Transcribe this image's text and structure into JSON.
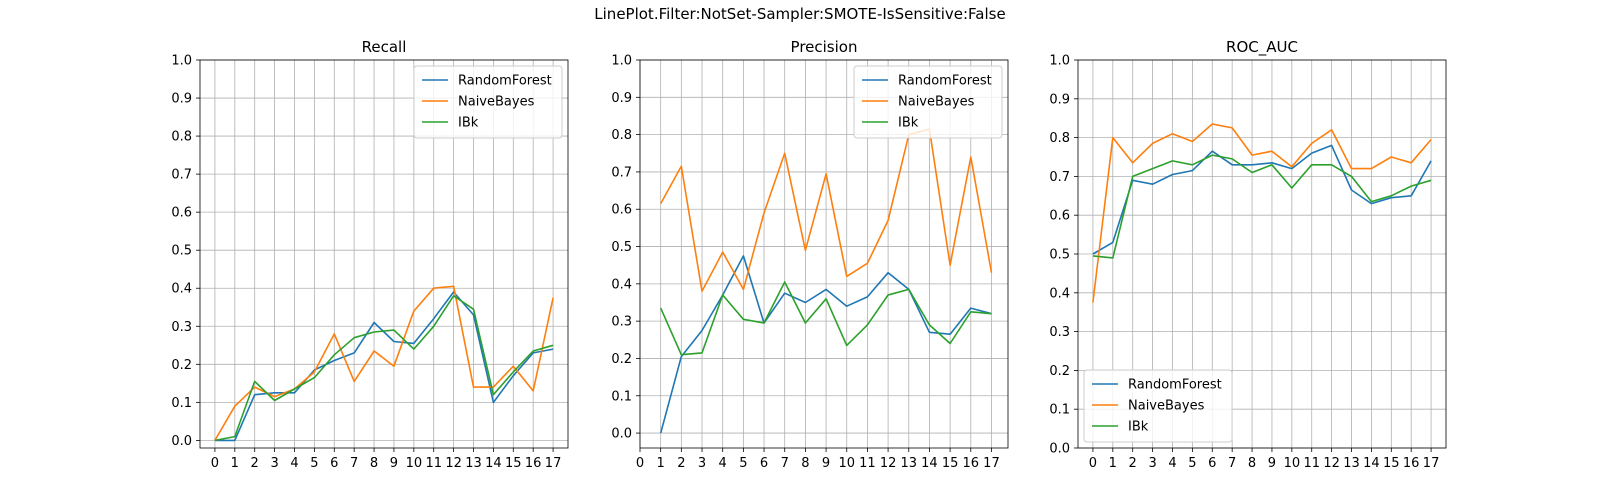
{
  "figure": {
    "suptitle": "LinePlot.Filter:NotSet-Sampler:SMOTE-IsSensitive:False"
  },
  "colors": {
    "RandomForest": "#1f77b4",
    "NaiveBayes": "#ff7f0e",
    "IBk": "#2ca02c",
    "grid": "#b0b0b0"
  },
  "chart_data": [
    {
      "type": "line",
      "title": "Recall",
      "xlabel": "",
      "ylabel": "",
      "x_ticks": [
        0,
        1,
        2,
        3,
        4,
        5,
        6,
        7,
        8,
        9,
        10,
        11,
        12,
        13,
        14,
        15,
        16,
        17
      ],
      "y_ticks": [
        "0.0",
        "0.1",
        "0.2",
        "0.3",
        "0.4",
        "0.5",
        "0.6",
        "0.7",
        "0.8",
        "0.9",
        "1.0"
      ],
      "xlim": [
        -0.75,
        17.75
      ],
      "ylim": [
        -0.02,
        1.0
      ],
      "grid": true,
      "legend_position": "upper right",
      "series": [
        {
          "name": "RandomForest",
          "x": [
            0,
            1,
            2,
            3,
            4,
            5,
            6,
            7,
            8,
            9,
            10,
            11,
            12,
            13,
            14,
            15,
            16,
            17
          ],
          "values": [
            0.0,
            0.0,
            0.12,
            0.125,
            0.125,
            0.185,
            0.21,
            0.23,
            0.31,
            0.26,
            0.255,
            0.32,
            0.39,
            0.33,
            0.1,
            0.17,
            0.23,
            0.24
          ]
        },
        {
          "name": "NaiveBayes",
          "x": [
            0,
            1,
            2,
            3,
            4,
            5,
            6,
            7,
            8,
            9,
            10,
            11,
            12,
            13,
            14,
            15,
            16,
            17
          ],
          "values": [
            0.0,
            0.09,
            0.14,
            0.115,
            0.135,
            0.18,
            0.28,
            0.155,
            0.235,
            0.195,
            0.34,
            0.4,
            0.405,
            0.14,
            0.14,
            0.195,
            0.13,
            0.375
          ]
        },
        {
          "name": "IBk",
          "x": [
            0,
            1,
            2,
            3,
            4,
            5,
            6,
            7,
            8,
            9,
            10,
            11,
            12,
            13,
            14,
            15,
            16,
            17
          ],
          "values": [
            0.0,
            0.01,
            0.155,
            0.105,
            0.135,
            0.165,
            0.225,
            0.27,
            0.285,
            0.29,
            0.24,
            0.3,
            0.38,
            0.345,
            0.12,
            0.18,
            0.235,
            0.25
          ]
        }
      ]
    },
    {
      "type": "line",
      "title": "Precision",
      "xlabel": "",
      "ylabel": "",
      "x_ticks": [
        0,
        1,
        2,
        3,
        4,
        5,
        6,
        7,
        8,
        9,
        10,
        11,
        12,
        13,
        14,
        15,
        16,
        17
      ],
      "y_ticks": [
        "0.0",
        "0.1",
        "0.2",
        "0.3",
        "0.4",
        "0.5",
        "0.6",
        "0.7",
        "0.8",
        "0.9",
        "1.0"
      ],
      "xlim": [
        0,
        17.8
      ],
      "ylim": [
        -0.04,
        1.0
      ],
      "grid": true,
      "legend_position": "upper right",
      "series": [
        {
          "name": "RandomForest",
          "x": [
            1,
            2,
            3,
            4,
            5,
            6,
            7,
            8,
            9,
            10,
            11,
            12,
            13,
            14,
            15,
            16,
            17
          ],
          "values": [
            0.0,
            0.205,
            0.275,
            0.37,
            0.475,
            0.295,
            0.375,
            0.35,
            0.385,
            0.34,
            0.365,
            0.43,
            0.385,
            0.27,
            0.265,
            0.335,
            0.32
          ]
        },
        {
          "name": "NaiveBayes",
          "x": [
            1,
            2,
            3,
            4,
            5,
            6,
            7,
            8,
            9,
            10,
            11,
            12,
            13,
            14,
            15,
            16,
            17
          ],
          "values": [
            0.615,
            0.715,
            0.38,
            0.485,
            0.385,
            0.59,
            0.75,
            0.49,
            0.695,
            0.42,
            0.455,
            0.57,
            0.8,
            0.815,
            0.45,
            0.74,
            0.43
          ]
        },
        {
          "name": "IBk",
          "x": [
            1,
            2,
            3,
            4,
            5,
            6,
            7,
            8,
            9,
            10,
            11,
            12,
            13,
            14,
            15,
            16,
            17
          ],
          "values": [
            0.335,
            0.21,
            0.215,
            0.37,
            0.305,
            0.295,
            0.405,
            0.295,
            0.36,
            0.235,
            0.29,
            0.37,
            0.385,
            0.29,
            0.24,
            0.325,
            0.32
          ]
        }
      ]
    },
    {
      "type": "line",
      "title": "ROC_AUC",
      "xlabel": "",
      "ylabel": "",
      "x_ticks": [
        0,
        1,
        2,
        3,
        4,
        5,
        6,
        7,
        8,
        9,
        10,
        11,
        12,
        13,
        14,
        15,
        16,
        17
      ],
      "y_ticks": [
        "0.0",
        "0.1",
        "0.2",
        "0.3",
        "0.4",
        "0.5",
        "0.6",
        "0.7",
        "0.8",
        "0.9",
        "1.0"
      ],
      "xlim": [
        -0.75,
        17.75
      ],
      "ylim": [
        0.0,
        1.0
      ],
      "grid": true,
      "legend_position": "lower left",
      "series": [
        {
          "name": "RandomForest",
          "x": [
            0,
            1,
            2,
            3,
            4,
            5,
            6,
            7,
            8,
            9,
            10,
            11,
            12,
            13,
            14,
            15,
            16,
            17
          ],
          "values": [
            0.5,
            0.53,
            0.69,
            0.68,
            0.705,
            0.715,
            0.765,
            0.73,
            0.73,
            0.735,
            0.72,
            0.76,
            0.78,
            0.665,
            0.63,
            0.645,
            0.65,
            0.74
          ]
        },
        {
          "name": "NaiveBayes",
          "x": [
            0,
            1,
            2,
            3,
            4,
            5,
            6,
            7,
            8,
            9,
            10,
            11,
            12,
            13,
            14,
            15,
            16,
            17
          ],
          "values": [
            0.375,
            0.8,
            0.735,
            0.785,
            0.81,
            0.79,
            0.835,
            0.825,
            0.755,
            0.765,
            0.725,
            0.785,
            0.82,
            0.72,
            0.72,
            0.75,
            0.735,
            0.795
          ]
        },
        {
          "name": "IBk",
          "x": [
            0,
            1,
            2,
            3,
            4,
            5,
            6,
            7,
            8,
            9,
            10,
            11,
            12,
            13,
            14,
            15,
            16,
            17
          ],
          "values": [
            0.495,
            0.49,
            0.7,
            0.72,
            0.74,
            0.73,
            0.755,
            0.745,
            0.71,
            0.73,
            0.67,
            0.73,
            0.73,
            0.7,
            0.635,
            0.65,
            0.675,
            0.69
          ]
        }
      ]
    }
  ]
}
